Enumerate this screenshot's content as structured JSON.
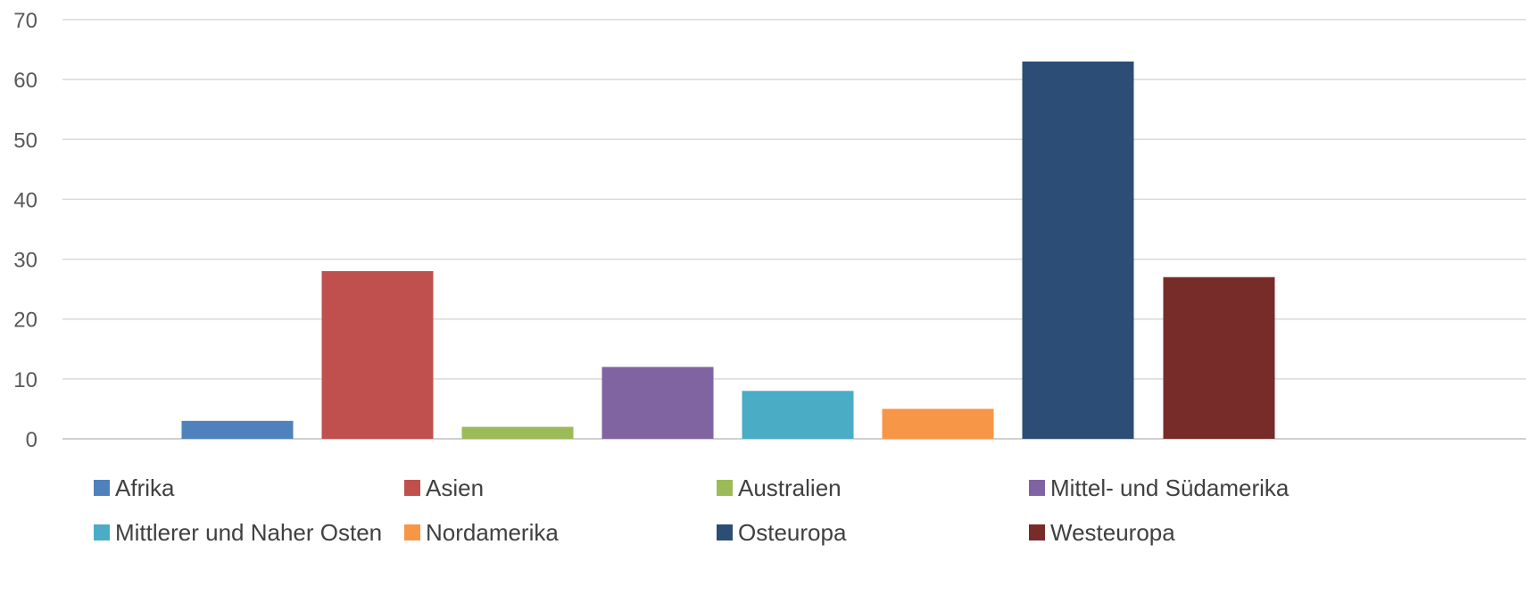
{
  "chart_data": {
    "type": "bar",
    "title": "",
    "xlabel": "",
    "ylabel": "",
    "ylim": [
      0,
      70
    ],
    "yticks": [
      0,
      10,
      20,
      30,
      40,
      50,
      60,
      70
    ],
    "grid": true,
    "legend_position": "bottom",
    "series": [
      {
        "name": "Afrika",
        "value": 3,
        "color": "#4F81BD"
      },
      {
        "name": "Asien",
        "value": 28,
        "color": "#C0504D"
      },
      {
        "name": "Australien",
        "value": 2,
        "color": "#9BBB59"
      },
      {
        "name": "Mittel- und Südamerika",
        "value": 12,
        "color": "#8064A2"
      },
      {
        "name": "Mittlerer und Naher Osten",
        "value": 8,
        "color": "#4BACC6"
      },
      {
        "name": "Nordamerika",
        "value": 5,
        "color": "#F79646"
      },
      {
        "name": "Osteuropa",
        "value": 63,
        "color": "#2C4D75"
      },
      {
        "name": "Westeuropa",
        "value": 27,
        "color": "#772C2A"
      }
    ]
  }
}
